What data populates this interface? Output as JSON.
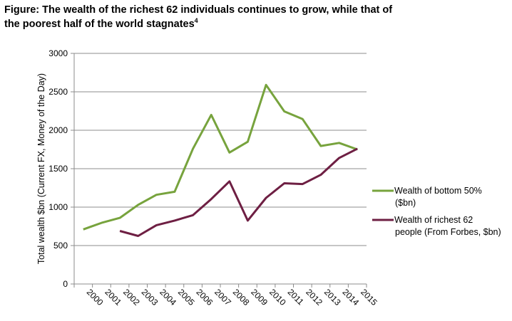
{
  "figure": {
    "title_line1": "Figure: The wealth of the richest 62 individuals continues to grow, while that of",
    "title_line2": "the poorest half of the world stagnates",
    "title_footnote": "4"
  },
  "chart_data": {
    "type": "line",
    "categories": [
      "2000",
      "2001",
      "2002",
      "2003",
      "2004",
      "2005",
      "2006",
      "2007",
      "2008",
      "2009",
      "2010",
      "2011",
      "2012",
      "2013",
      "2014",
      "2015"
    ],
    "ylabel": "Total wealth $bn (Current FX, Money of the Day)",
    "xlabel": "",
    "ylim": [
      0,
      3000
    ],
    "yticks": [
      "0",
      "500",
      "1000",
      "1500",
      "2000",
      "2500",
      "3000"
    ],
    "grid": true,
    "legend_position": "right",
    "series": [
      {
        "name": "Wealth of bottom 50% ($bn)",
        "legend_lines": [
          "Wealth of bottom 50%",
          "($bn)"
        ],
        "color": "#77a33d",
        "values": [
          710,
          795,
          860,
          1030,
          1160,
          1200,
          1760,
          2200,
          1710,
          1850,
          2590,
          2245,
          2145,
          1795,
          1835,
          1750
        ]
      },
      {
        "name": "Wealth of richest 62 people (From Forbes, $bn)",
        "legend_lines": [
          "Wealth of richest 62",
          "people (From Forbes, $bn)"
        ],
        "color": "#6e1f43",
        "values": [
          null,
          null,
          690,
          625,
          765,
          825,
          895,
          1105,
          1335,
          825,
          1120,
          1310,
          1300,
          1420,
          1640,
          1760
        ]
      }
    ]
  }
}
